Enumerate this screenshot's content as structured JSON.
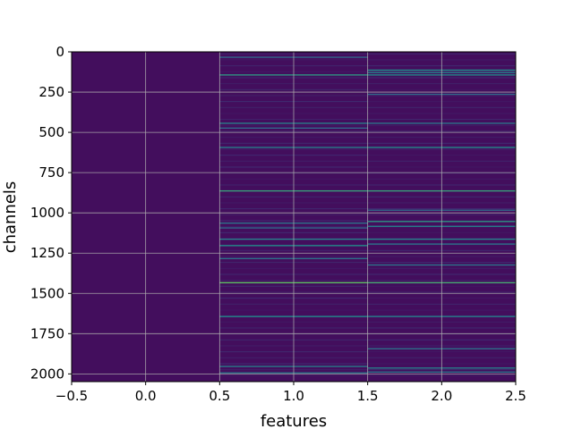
{
  "chart_data": {
    "type": "heatmap",
    "title": "",
    "xlabel": "features",
    "ylabel": "channels",
    "x_ticks": [
      -0.5,
      0.0,
      0.5,
      1.0,
      1.5,
      2.0,
      2.5
    ],
    "x_tick_labels": [
      "−0.5",
      "0.0",
      "0.5",
      "1.0",
      "1.5",
      "2.0",
      "2.5"
    ],
    "y_ticks": [
      0,
      250,
      500,
      750,
      1000,
      1250,
      1500,
      1750,
      2000
    ],
    "y_tick_labels": [
      "0",
      "250",
      "500",
      "750",
      "1000",
      "1250",
      "1500",
      "1750",
      "2000"
    ],
    "xlim": [
      -0.5,
      2.5
    ],
    "ylim": [
      2048,
      0
    ],
    "y_inverted": true,
    "grid": true,
    "colormap": "viridis",
    "columns": [
      0,
      1,
      2
    ],
    "rows": 2048,
    "highlight_rows": [
      {
        "column": 1,
        "channels": [
          30,
          140,
          440,
          470,
          590,
          860,
          1060,
          1090,
          1160,
          1200,
          1280,
          1430,
          1640,
          1950,
          1990
        ],
        "values": [
          0.35,
          0.55,
          0.45,
          0.35,
          0.45,
          0.6,
          0.4,
          0.35,
          0.45,
          0.5,
          0.4,
          0.75,
          0.5,
          0.45,
          0.4
        ]
      },
      {
        "column": 2,
        "channels": [
          110,
          125,
          140,
          260,
          440,
          590,
          860,
          980,
          1050,
          1080,
          1160,
          1190,
          1320,
          1430,
          1640,
          1840,
          1960,
          1985
        ],
        "values": [
          0.5,
          0.45,
          0.5,
          0.35,
          0.4,
          0.5,
          0.6,
          0.35,
          0.55,
          0.45,
          0.45,
          0.4,
          0.4,
          0.65,
          0.45,
          0.4,
          0.45,
          0.4
        ]
      }
    ],
    "background_value": 0.04
  }
}
